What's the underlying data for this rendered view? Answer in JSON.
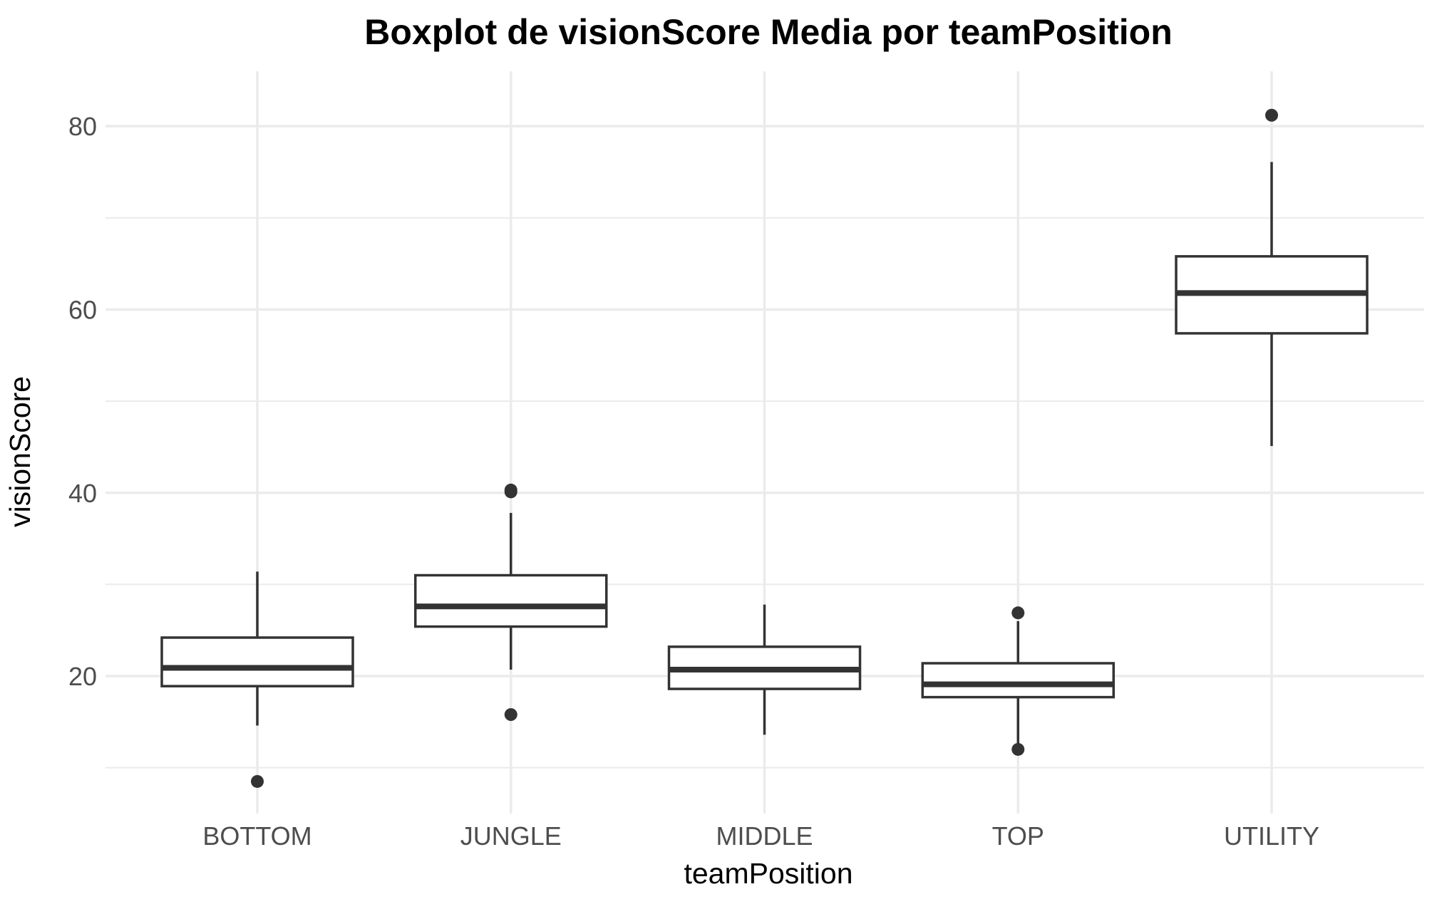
{
  "chart_data": {
    "type": "boxplot",
    "title": "Boxplot de visionScore Media por teamPosition",
    "xlabel": "teamPosition",
    "ylabel": "visionScore",
    "ylim": [
      5,
      86
    ],
    "yticks": [
      20,
      40,
      60,
      80
    ],
    "grid": true,
    "categories": [
      "BOTTOM",
      "JUNGLE",
      "MIDDLE",
      "TOP",
      "UTILITY"
    ],
    "boxes": [
      {
        "category": "BOTTOM",
        "whisker_low": 14.6,
        "q1": 18.9,
        "median": 20.9,
        "q3": 24.2,
        "whisker_high": 31.4,
        "outliers": [
          8.5
        ]
      },
      {
        "category": "JUNGLE",
        "whisker_low": 20.7,
        "q1": 25.4,
        "median": 27.6,
        "q3": 31.0,
        "whisker_high": 37.8,
        "outliers": [
          40.1,
          40.3,
          15.8
        ]
      },
      {
        "category": "MIDDLE",
        "whisker_low": 13.6,
        "q1": 18.6,
        "median": 20.7,
        "q3": 23.2,
        "whisker_high": 27.8,
        "outliers": []
      },
      {
        "category": "TOP",
        "whisker_low": 12.2,
        "q1": 17.7,
        "median": 19.1,
        "q3": 21.4,
        "whisker_high": 26.0,
        "outliers": [
          26.9,
          12.0
        ]
      },
      {
        "category": "UTILITY",
        "whisker_low": 45.1,
        "q1": 57.4,
        "median": 61.8,
        "q3": 65.8,
        "whisker_high": 76.1,
        "outliers": [
          81.2
        ]
      }
    ],
    "colors": {
      "box_stroke": "#333333",
      "box_fill": "#ffffff",
      "grid": "#ebebeb",
      "tick_text": "#4d4d4d",
      "text": "#000000"
    }
  }
}
